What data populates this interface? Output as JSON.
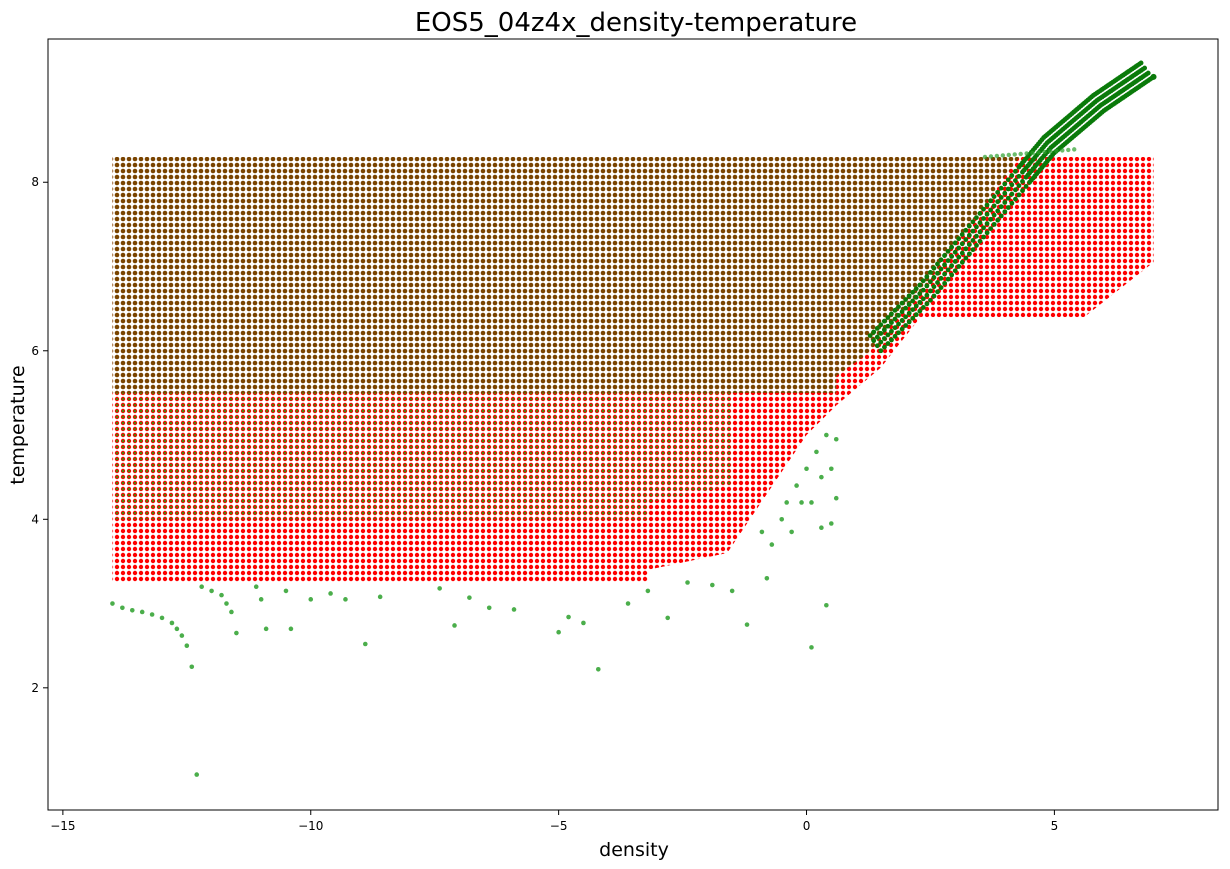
{
  "chart_data": {
    "type": "scatter",
    "title": "EOS5_04z4x_density-temperature",
    "xlabel": "density",
    "ylabel": "temperature",
    "xlim": [
      -15.3,
      8.3
    ],
    "ylim": [
      0.55,
      9.7
    ],
    "x_ticks": [
      -15,
      -10,
      -5,
      0,
      5
    ],
    "x_tick_labels": [
      "−15",
      "−10",
      "−5",
      "0",
      "5"
    ],
    "y_ticks": [
      2,
      4,
      6,
      8
    ],
    "y_tick_labels": [
      "2",
      "4",
      "6",
      "8"
    ],
    "grid": false,
    "legend": "none",
    "colors": {
      "red": "#ff0000",
      "green": "#2ca02c",
      "green_dense": "#0a7a0a",
      "brown": "#7a4400"
    },
    "series": [
      {
        "color": "red",
        "description_of_extent": "regular density-temperature grid, density -14 to 7, temperature 3.25 to 8.3",
        "density_range": [
          -14.0,
          7.0
        ],
        "temperature_range": [
          3.25,
          8.3
        ],
        "upper_left_step": {
          "x_max": 0.6,
          "y_max": 8.3
        },
        "lower_boundary": [
          {
            "x": -14.0,
            "y": 3.25
          },
          {
            "x": -3.2,
            "y": 3.25
          },
          {
            "x": -3.2,
            "y": 3.4
          },
          {
            "x": -1.6,
            "y": 3.6
          },
          {
            "x": -0.8,
            "y": 4.3
          },
          {
            "x": 0.0,
            "y": 5.0
          },
          {
            "x": 0.6,
            "y": 5.35
          }
        ],
        "right_block": {
          "x_range": [
            2.3,
            7.0
          ],
          "y_bottom_left": 6.4,
          "y_bottom_right_start": {
            "x": 5.6,
            "y": 6.4
          },
          "y_bottom_right_end": {
            "x": 7.0,
            "y": 7.05
          },
          "y_top": 8.3
        }
      },
      {
        "color": "green",
        "description_of_extent": "overlapping grid covering density -14 to ~0.6 and the rising diagonal band up to (7, 9.25)",
        "dense_region": {
          "x_range": [
            -14.0,
            0.6
          ],
          "y_range": [
            5.5,
            8.3
          ]
        },
        "mid_region": {
          "x_range": [
            -14.0,
            -3.2
          ],
          "y_range": [
            4.0,
            5.5
          ]
        },
        "diagonal_band": [
          {
            "x": 1.5,
            "y": 6.0
          },
          {
            "x": 2.5,
            "y": 6.6
          },
          {
            "x": 3.5,
            "y": 7.3
          },
          {
            "x": 4.5,
            "y": 8.0
          },
          {
            "x": 5.0,
            "y": 8.35
          },
          {
            "x": 5.5,
            "y": 8.6
          },
          {
            "x": 6.0,
            "y": 8.85
          },
          {
            "x": 6.5,
            "y": 9.05
          },
          {
            "x": 7.0,
            "y": 9.25
          }
        ],
        "outliers": [
          {
            "x": -14.0,
            "y": 3.0
          },
          {
            "x": -13.8,
            "y": 2.95
          },
          {
            "x": -13.6,
            "y": 2.92
          },
          {
            "x": -13.4,
            "y": 2.9
          },
          {
            "x": -13.2,
            "y": 2.87
          },
          {
            "x": -13.0,
            "y": 2.83
          },
          {
            "x": -12.8,
            "y": 2.77
          },
          {
            "x": -12.7,
            "y": 2.7
          },
          {
            "x": -12.6,
            "y": 2.62
          },
          {
            "x": -12.5,
            "y": 2.5
          },
          {
            "x": -12.4,
            "y": 2.25
          },
          {
            "x": -12.3,
            "y": 0.97
          },
          {
            "x": -12.2,
            "y": 3.2
          },
          {
            "x": -12.0,
            "y": 3.15
          },
          {
            "x": -11.8,
            "y": 3.1
          },
          {
            "x": -11.7,
            "y": 3.0
          },
          {
            "x": -11.6,
            "y": 2.9
          },
          {
            "x": -11.5,
            "y": 2.65
          },
          {
            "x": -11.1,
            "y": 3.2
          },
          {
            "x": -11.0,
            "y": 3.05
          },
          {
            "x": -10.9,
            "y": 2.7
          },
          {
            "x": -10.5,
            "y": 3.15
          },
          {
            "x": -10.4,
            "y": 2.7
          },
          {
            "x": -10.0,
            "y": 3.05
          },
          {
            "x": -9.6,
            "y": 3.12
          },
          {
            "x": -9.3,
            "y": 3.05
          },
          {
            "x": -8.9,
            "y": 2.52
          },
          {
            "x": -8.6,
            "y": 3.08
          },
          {
            "x": -7.4,
            "y": 3.18
          },
          {
            "x": -7.1,
            "y": 2.74
          },
          {
            "x": -6.8,
            "y": 3.07
          },
          {
            "x": -6.4,
            "y": 2.95
          },
          {
            "x": -5.9,
            "y": 2.93
          },
          {
            "x": -5.0,
            "y": 2.66
          },
          {
            "x": -4.8,
            "y": 2.84
          },
          {
            "x": -4.5,
            "y": 2.77
          },
          {
            "x": -4.2,
            "y": 2.22
          },
          {
            "x": -3.6,
            "y": 3.0
          },
          {
            "x": -3.2,
            "y": 3.15
          },
          {
            "x": -2.8,
            "y": 2.83
          },
          {
            "x": -2.4,
            "y": 3.25
          },
          {
            "x": -1.9,
            "y": 3.22
          },
          {
            "x": -1.5,
            "y": 3.15
          },
          {
            "x": -1.2,
            "y": 2.75
          },
          {
            "x": -0.8,
            "y": 3.3
          },
          {
            "x": 0.1,
            "y": 2.48
          },
          {
            "x": 0.4,
            "y": 2.98
          },
          {
            "x": -0.9,
            "y": 3.85
          },
          {
            "x": -0.7,
            "y": 3.7
          },
          {
            "x": -0.5,
            "y": 4.0
          },
          {
            "x": -0.4,
            "y": 4.2
          },
          {
            "x": -0.3,
            "y": 3.85
          },
          {
            "x": -0.2,
            "y": 4.4
          },
          {
            "x": -0.1,
            "y": 4.2
          },
          {
            "x": 0.0,
            "y": 4.6
          },
          {
            "x": 0.1,
            "y": 4.2
          },
          {
            "x": 0.2,
            "y": 4.8
          },
          {
            "x": 0.3,
            "y": 3.9
          },
          {
            "x": 0.3,
            "y": 4.5
          },
          {
            "x": 0.4,
            "y": 5.0
          },
          {
            "x": 0.5,
            "y": 3.95
          },
          {
            "x": 0.5,
            "y": 4.6
          },
          {
            "x": 0.6,
            "y": 4.25
          },
          {
            "x": 0.6,
            "y": 4.95
          }
        ]
      },
      {
        "color": "brown",
        "description_of_extent": "overlap of red and green grids, density -14 to 0.6, temperature 5.5 to 8.3",
        "density_range": [
          -14.0,
          0.6
        ],
        "temperature_range": [
          5.5,
          8.3
        ]
      }
    ]
  }
}
